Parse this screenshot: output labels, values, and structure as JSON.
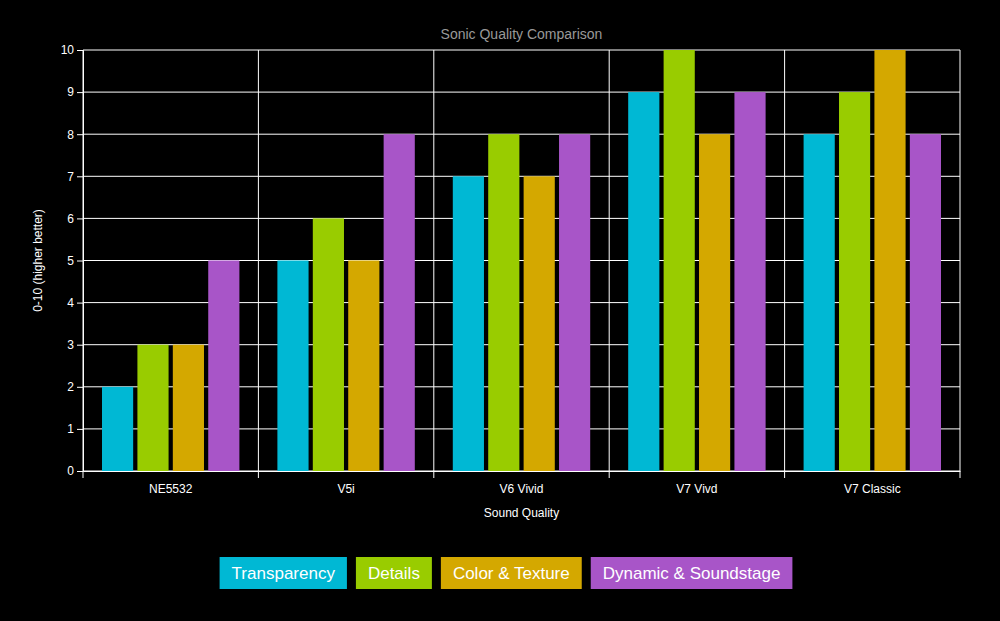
{
  "chart_data": {
    "type": "bar",
    "title": "Sonic Quality Comparison",
    "x_label": "Sound Quality",
    "y_label": "0-10 (higher better)",
    "categories": [
      "NE5532",
      "V5i",
      "V6 Vivid",
      "V7 Vivd",
      "V7 Classic"
    ],
    "series": [
      {
        "name": "Transparency",
        "color": "#00b8d4",
        "values": [
          2,
          5,
          7,
          9,
          8
        ]
      },
      {
        "name": "Details",
        "color": "#99cc00",
        "values": [
          3,
          6,
          8,
          10,
          9
        ]
      },
      {
        "name": "Color & Texture",
        "color": "#d4a800",
        "values": [
          3,
          5,
          7,
          8,
          10
        ]
      },
      {
        "name": "Dynamic & Soundstage",
        "color": "#a855c8",
        "values": [
          5,
          8,
          8,
          9,
          8
        ]
      }
    ],
    "ylim": [
      0,
      10
    ],
    "yticks": [
      0,
      1,
      2,
      3,
      4,
      5,
      6,
      7,
      8,
      9,
      10
    ],
    "grid": true,
    "legend": "bottom"
  }
}
